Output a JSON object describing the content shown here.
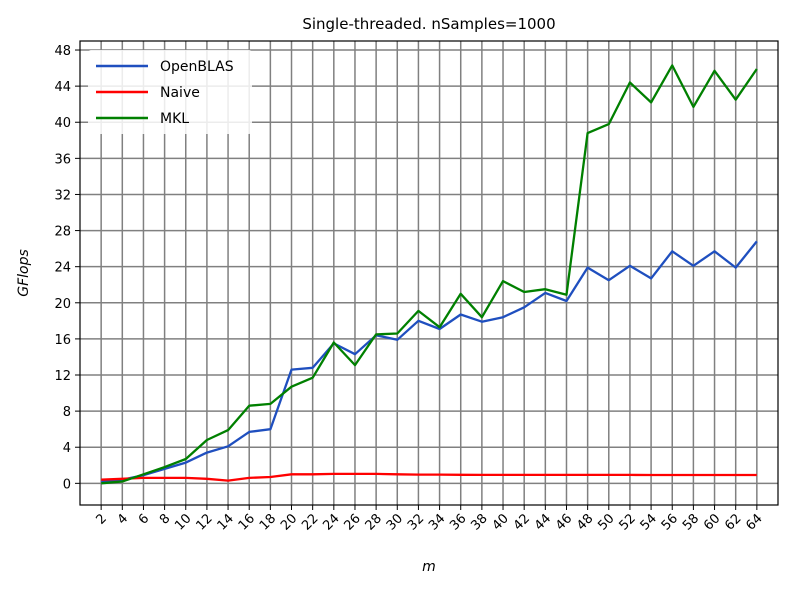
{
  "chart_data": {
    "type": "line",
    "title": "Single-threaded. nSamples=1000",
    "xlabel": "m",
    "ylabel": "GFlops",
    "x": [
      2,
      4,
      6,
      8,
      10,
      12,
      14,
      16,
      18,
      20,
      22,
      24,
      26,
      28,
      30,
      32,
      34,
      36,
      38,
      40,
      42,
      44,
      46,
      48,
      50,
      52,
      54,
      56,
      58,
      60,
      62,
      64
    ],
    "xticks": [
      "2",
      "4",
      "6",
      "8",
      "10",
      "12",
      "14",
      "16",
      "18",
      "20",
      "22",
      "24",
      "26",
      "28",
      "30",
      "32",
      "34",
      "36",
      "38",
      "40",
      "42",
      "44",
      "46",
      "48",
      "50",
      "52",
      "54",
      "56",
      "58",
      "60",
      "62",
      "64"
    ],
    "yticks": [
      "0",
      "4",
      "8",
      "12",
      "16",
      "20",
      "24",
      "28",
      "32",
      "36",
      "40",
      "44",
      "48"
    ],
    "ylim": [
      -2.4,
      49
    ],
    "grid": true,
    "legend_position": "top-left",
    "series": [
      {
        "name": "OpenBLAS",
        "color": "#1f4fbf",
        "values": [
          0.2,
          0.4,
          0.9,
          1.6,
          2.3,
          3.4,
          4.1,
          5.7,
          6.0,
          12.6,
          12.8,
          15.5,
          14.3,
          16.4,
          15.9,
          18.0,
          17.1,
          18.7,
          17.9,
          18.4,
          19.5,
          21.1,
          20.2,
          23.9,
          22.5,
          24.1,
          22.7,
          25.7,
          24.1,
          25.7,
          23.9,
          26.8
        ]
      },
      {
        "name": "Naive",
        "color": "#ff0000",
        "values": [
          0.4,
          0.5,
          0.6,
          0.6,
          0.6,
          0.5,
          0.3,
          0.6,
          0.7,
          1.0,
          1.0,
          1.05,
          1.05,
          1.05,
          1.0,
          0.97,
          0.97,
          0.95,
          0.93,
          0.93,
          0.93,
          0.93,
          0.93,
          0.93,
          0.93,
          0.93,
          0.92,
          0.92,
          0.92,
          0.92,
          0.92,
          0.92
        ]
      },
      {
        "name": "MKL",
        "color": "#008000",
        "values": [
          0.0,
          0.2,
          1.0,
          1.8,
          2.7,
          4.8,
          5.9,
          8.6,
          8.8,
          10.7,
          11.7,
          15.6,
          13.1,
          16.5,
          16.6,
          19.1,
          17.3,
          21.0,
          18.4,
          22.4,
          21.2,
          21.5,
          20.9,
          38.8,
          39.8,
          44.4,
          42.2,
          46.3,
          41.7,
          45.7,
          42.5,
          45.9
        ]
      }
    ]
  }
}
